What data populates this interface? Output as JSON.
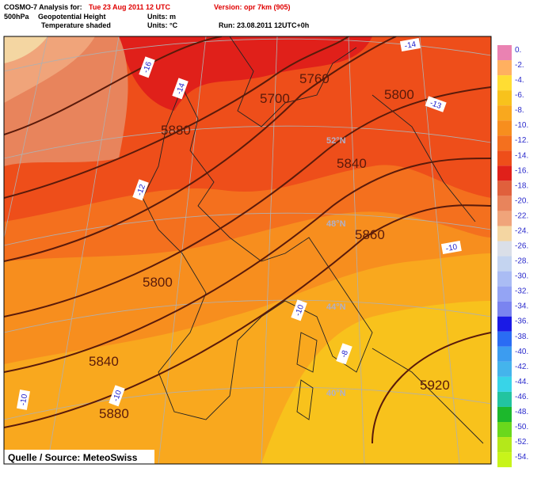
{
  "header": {
    "model": "COSMO-7 Analysis for:",
    "date": "Tue 23 Aug 2011 12 UTC",
    "version": "Version: opr 7km (905)",
    "level": "500hPa",
    "field1": "Geopotential Height",
    "units1": "Units: m",
    "field2": "Temperature shaded",
    "units2": "Units: °C",
    "run": "Run: 23.08.2011 12UTC+0h"
  },
  "legend": {
    "items": [
      {
        "label": "0.",
        "color": "#ea82b2"
      },
      {
        "label": "-2.",
        "color": "#ffb060"
      },
      {
        "label": "-4.",
        "color": "#ffdd33"
      },
      {
        "label": "-6.",
        "color": "#f8c21c"
      },
      {
        "label": "-8.",
        "color": "#f9a81e"
      },
      {
        "label": "-10.",
        "color": "#f78e1e"
      },
      {
        "label": "-12.",
        "color": "#f4701e"
      },
      {
        "label": "-14.",
        "color": "#ee4e1a"
      },
      {
        "label": "-16.",
        "color": "#e0201a"
      },
      {
        "label": "-18.",
        "color": "#e0603c"
      },
      {
        "label": "-20.",
        "color": "#e8845c"
      },
      {
        "label": "-22.",
        "color": "#f0a47a"
      },
      {
        "label": "-24.",
        "color": "#f4d6a2"
      },
      {
        "label": "-26.",
        "color": "#dadfe8"
      },
      {
        "label": "-28.",
        "color": "#c4d4f0"
      },
      {
        "label": "-30.",
        "color": "#aabcf4"
      },
      {
        "label": "-32.",
        "color": "#94a4f4"
      },
      {
        "label": "-34.",
        "color": "#7a84f0"
      },
      {
        "label": "-36.",
        "color": "#1a1ae6"
      },
      {
        "label": "-38.",
        "color": "#2a6cf4"
      },
      {
        "label": "-40.",
        "color": "#3c9cf0"
      },
      {
        "label": "-42.",
        "color": "#44b4ec"
      },
      {
        "label": "-44.",
        "color": "#38d4e8"
      },
      {
        "label": "-46.",
        "color": "#22c4a0"
      },
      {
        "label": "-48.",
        "color": "#1cb82c"
      },
      {
        "label": "-50.",
        "color": "#6ad81c"
      },
      {
        "label": "-52.",
        "color": "#b4e81a"
      },
      {
        "label": "-54.",
        "color": "#c8f41a"
      }
    ]
  },
  "map": {
    "contour_labels": [
      "5700",
      "5760",
      "5800",
      "5880",
      "5840",
      "5860",
      "5800",
      "5840",
      "5880",
      "5920"
    ],
    "temperature_labels": [
      "-16",
      "-14",
      "-14",
      "-13",
      "-12",
      "-10",
      "-10",
      "-8",
      "-10",
      "-10"
    ],
    "latitude_labels": [
      "52°N",
      "48°N",
      "44°N",
      "40°N"
    ],
    "source": "Quelle / Source: MeteoSwiss"
  }
}
